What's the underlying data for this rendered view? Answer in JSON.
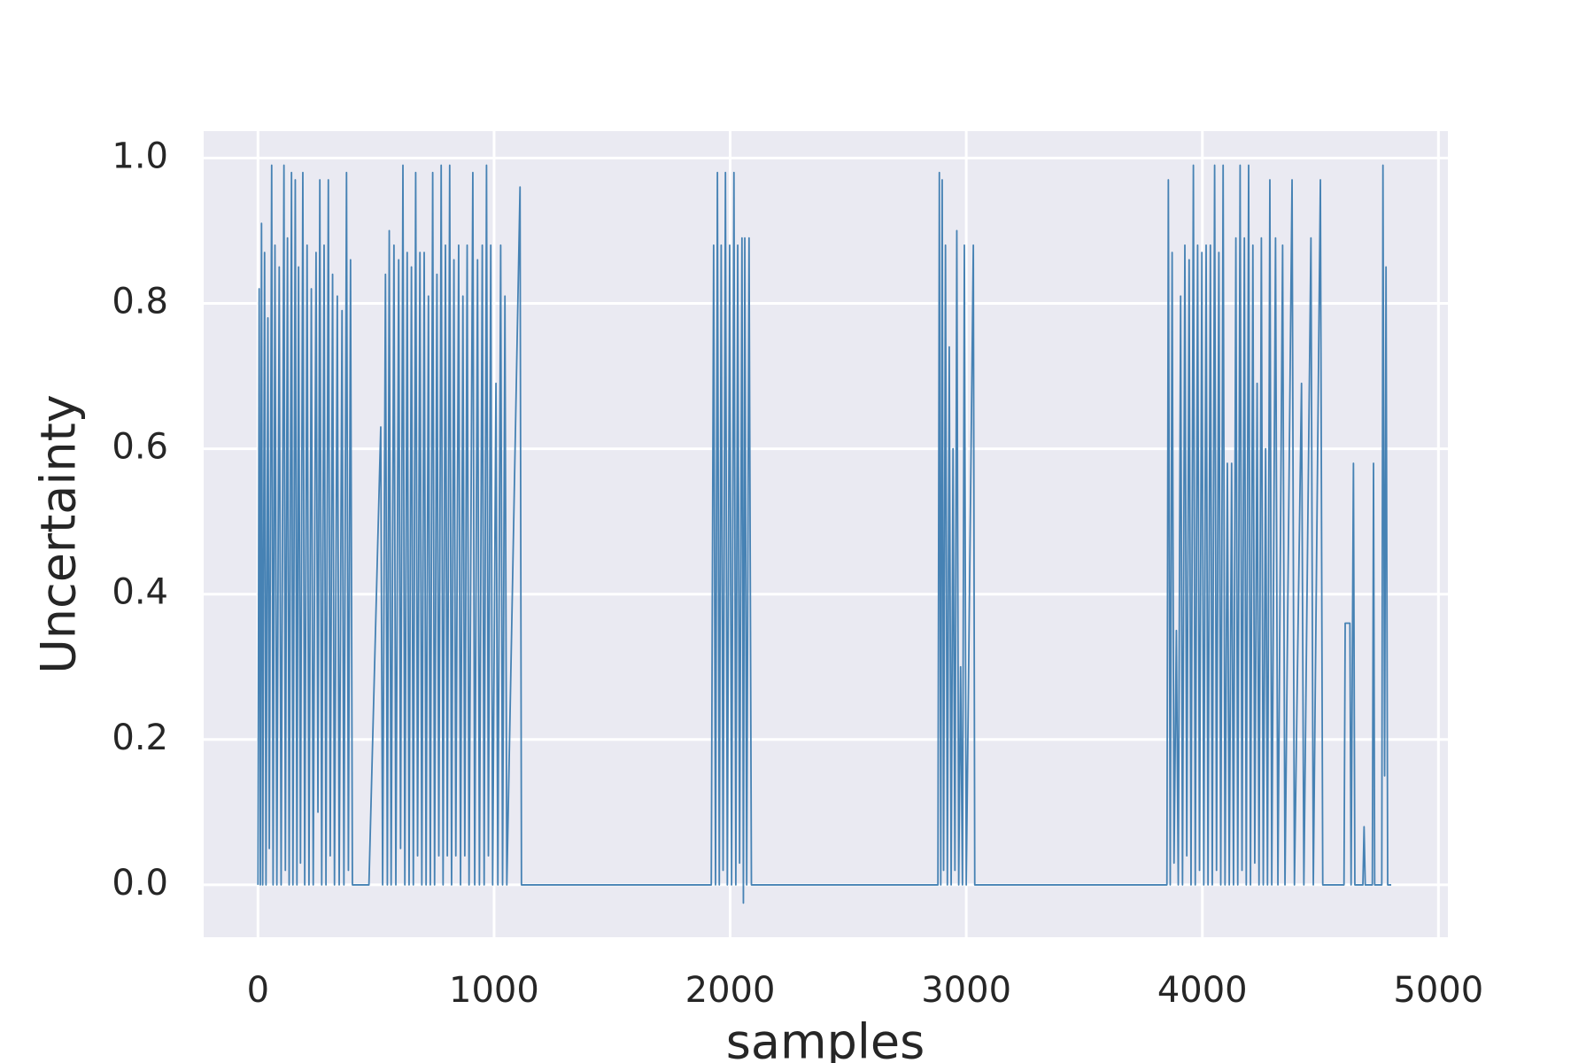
{
  "chart_data": {
    "type": "line",
    "xlabel": "samples",
    "ylabel": "Uncertainty",
    "color": "#4682b4",
    "grid": true,
    "xlim": [
      -230,
      5040
    ],
    "ylim": [
      -0.072,
      1.037
    ],
    "xticks": [
      0,
      1000,
      2000,
      3000,
      4000,
      5000
    ],
    "yticks": [
      {
        "value": 0,
        "label": "0.0"
      },
      0.2,
      0.4,
      0.6,
      0.8,
      {
        "value": 1,
        "label": "1.0"
      }
    ],
    "x": [
      0,
      5,
      10,
      15,
      20,
      28,
      34,
      42,
      48,
      58,
      64,
      72,
      80,
      90,
      98,
      110,
      116,
      125,
      132,
      142,
      148,
      158,
      165,
      172,
      180,
      190,
      198,
      208,
      216,
      226,
      234,
      246,
      254,
      262,
      270,
      280,
      288,
      298,
      306,
      316,
      324,
      336,
      344,
      356,
      364,
      375,
      383,
      392,
      400,
      470,
      520,
      528,
      540,
      548,
      556,
      564,
      576,
      584,
      596,
      604,
      614,
      622,
      632,
      640,
      650,
      658,
      668,
      676,
      686,
      694,
      704,
      712,
      722,
      730,
      740,
      748,
      758,
      766,
      776,
      784,
      794,
      802,
      812,
      820,
      830,
      838,
      850,
      858,
      868,
      876,
      886,
      894,
      910,
      918,
      930,
      938,
      950,
      958,
      968,
      976,
      986,
      994,
      1008,
      1016,
      1028,
      1036,
      1046,
      1054,
      1110,
      1116,
      1920,
      1930,
      1938,
      1946,
      1954,
      1962,
      1970,
      1980,
      1988,
      1998,
      2006,
      2016,
      2024,
      2032,
      2040,
      2050,
      2056,
      2062,
      2070,
      2080,
      2090,
      2880,
      2886,
      2892,
      2898,
      2904,
      2912,
      2920,
      2928,
      2936,
      2944,
      2952,
      2960,
      2968,
      2976,
      2984,
      2992,
      3000,
      3030,
      3036,
      3850,
      3856,
      3864,
      3872,
      3880,
      3890,
      3898,
      3908,
      3916,
      3926,
      3934,
      3944,
      3952,
      3962,
      3970,
      3980,
      3988,
      3998,
      4006,
      4016,
      4024,
      4034,
      4042,
      4052,
      4060,
      4070,
      4078,
      4088,
      4096,
      4106,
      4114,
      4124,
      4132,
      4142,
      4150,
      4160,
      4168,
      4178,
      4186,
      4196,
      4204,
      4214,
      4222,
      4232,
      4240,
      4250,
      4258,
      4268,
      4276,
      4286,
      4294,
      4310,
      4320,
      4340,
      4350,
      4380,
      4390,
      4420,
      4430,
      4460,
      4470,
      4500,
      4510,
      4600,
      4605,
      4625,
      4630,
      4640,
      4646,
      4680,
      4685,
      4690,
      4720,
      4725,
      4730,
      4760,
      4765,
      4772,
      4778,
      4785,
      4800
    ],
    "values": [
      0,
      0.82,
      0,
      0.91,
      0,
      0.87,
      0,
      0.78,
      0.05,
      0.99,
      0,
      0.88,
      0,
      0.85,
      0,
      0.99,
      0.02,
      0.89,
      0,
      0.98,
      0,
      0.97,
      0,
      0.85,
      0.03,
      0.98,
      0,
      0.88,
      0,
      0.82,
      0,
      0.87,
      0.1,
      0.97,
      0,
      0.88,
      0,
      0.97,
      0.04,
      0.84,
      0,
      0.81,
      0,
      0.79,
      0,
      0.98,
      0.02,
      0.86,
      0,
      0,
      0.63,
      0,
      0.84,
      0,
      0.9,
      0,
      0.88,
      0,
      0.86,
      0.05,
      0.99,
      0,
      0.87,
      0,
      0.85,
      0,
      0.98,
      0.04,
      0.87,
      0,
      0.87,
      0,
      0.81,
      0,
      0.98,
      0,
      0.84,
      0.04,
      0.99,
      0,
      0.88,
      0.04,
      0.99,
      0,
      0.86,
      0.04,
      0.88,
      0,
      0.81,
      0.04,
      0.88,
      0,
      0.98,
      0,
      0.86,
      0,
      0.88,
      0,
      0.99,
      0.04,
      0.88,
      0,
      0.69,
      0,
      0.88,
      0,
      0.81,
      0,
      0.96,
      0,
      0,
      0.88,
      0,
      0.98,
      0,
      0.88,
      0.02,
      0.98,
      0,
      0.88,
      0,
      0.98,
      0,
      0.88,
      0.03,
      0.89,
      -0.025,
      0.89,
      0,
      0.89,
      0,
      0,
      0.98,
      0,
      0.97,
      0.02,
      0.88,
      0,
      0.74,
      0,
      0.6,
      0.02,
      0.9,
      0,
      0.3,
      0,
      0.88,
      0,
      0.88,
      0,
      0,
      0.97,
      0,
      0.87,
      0.03,
      0.35,
      0,
      0.81,
      0,
      0.88,
      0.04,
      0.86,
      0,
      0.99,
      0,
      0.88,
      0.02,
      0.87,
      0,
      0.88,
      0,
      0.88,
      0,
      0.99,
      0.02,
      0.87,
      0,
      0.99,
      0,
      0.58,
      0,
      0.58,
      0,
      0.89,
      0,
      0.99,
      0.02,
      0.89,
      0,
      0.99,
      0,
      0.88,
      0.03,
      0.69,
      0,
      0.89,
      0,
      0.6,
      0,
      0.97,
      0,
      0.89,
      0,
      0.88,
      0,
      0.97,
      0,
      0.69,
      0,
      0.89,
      0,
      0.97,
      0,
      0,
      0.36,
      0.36,
      0,
      0.58,
      0,
      0,
      0.08,
      0,
      0,
      0.58,
      0,
      0,
      0.99,
      0.15,
      0.85,
      0,
      0
    ]
  }
}
